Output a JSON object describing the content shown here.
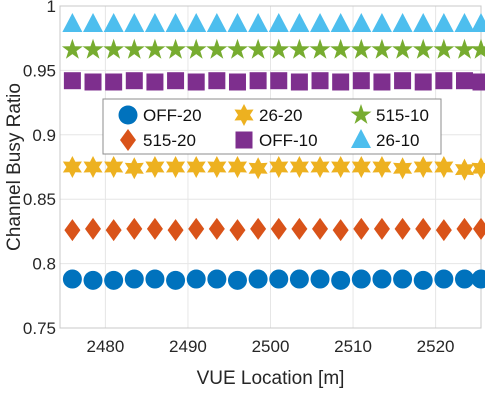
{
  "chart_data": {
    "type": "scatter",
    "xlabel": "VUE Location [m]",
    "ylabel": "Channel Busy Ratio",
    "xlim": [
      2474.5,
      2525.5
    ],
    "ylim": [
      0.75,
      1.0
    ],
    "xticks": [
      2480,
      2490,
      2500,
      2510,
      2520
    ],
    "xtick_labels": [
      "2480",
      "2490",
      "2500",
      "2510",
      "2520"
    ],
    "yticks": [
      0.75,
      0.8,
      0.85,
      0.9,
      0.95,
      1.0
    ],
    "ytick_labels": [
      "0.75",
      "0.8",
      "0.85",
      "0.9",
      "0.95",
      "1"
    ],
    "grid": true,
    "legend_position": "center",
    "x": [
      2476,
      2478.5,
      2481,
      2483.5,
      2486,
      2488.5,
      2491,
      2493.5,
      2496,
      2498.5,
      2501,
      2503.5,
      2506,
      2508.5,
      2511,
      2513.5,
      2516,
      2518.5,
      2521,
      2523.5,
      2525.5
    ],
    "series": [
      {
        "name": "OFF-20",
        "marker": "circle",
        "color": "#0072BD",
        "values": [
          0.788,
          0.787,
          0.787,
          0.788,
          0.788,
          0.787,
          0.788,
          0.788,
          0.787,
          0.788,
          0.788,
          0.788,
          0.788,
          0.787,
          0.788,
          0.788,
          0.788,
          0.787,
          0.788,
          0.788,
          0.788
        ]
      },
      {
        "name": "515-20",
        "marker": "diamond",
        "color": "#D95319",
        "values": [
          0.826,
          0.827,
          0.826,
          0.827,
          0.827,
          0.826,
          0.827,
          0.827,
          0.826,
          0.827,
          0.827,
          0.827,
          0.827,
          0.826,
          0.827,
          0.827,
          0.827,
          0.827,
          0.826,
          0.827,
          0.827
        ]
      },
      {
        "name": "26-20",
        "marker": "hexagram",
        "color": "#EDB120",
        "values": [
          0.875,
          0.875,
          0.875,
          0.874,
          0.875,
          0.875,
          0.875,
          0.875,
          0.875,
          0.874,
          0.875,
          0.875,
          0.875,
          0.875,
          0.875,
          0.875,
          0.874,
          0.875,
          0.875,
          0.873,
          0.874
        ]
      },
      {
        "name": "OFF-10",
        "marker": "square",
        "color": "#7E2F8E",
        "values": [
          0.942,
          0.941,
          0.941,
          0.942,
          0.941,
          0.942,
          0.941,
          0.942,
          0.941,
          0.942,
          0.942,
          0.941,
          0.942,
          0.941,
          0.942,
          0.941,
          0.942,
          0.941,
          0.942,
          0.942,
          0.941
        ]
      },
      {
        "name": "515-10",
        "marker": "pentagram",
        "color": "#77AC30",
        "values": [
          0.966,
          0.966,
          0.966,
          0.966,
          0.966,
          0.966,
          0.966,
          0.966,
          0.966,
          0.966,
          0.966,
          0.966,
          0.966,
          0.966,
          0.966,
          0.966,
          0.966,
          0.966,
          0.966,
          0.966,
          0.966
        ]
      },
      {
        "name": "26-10",
        "marker": "triangle",
        "color": "#4DBEEE",
        "values": [
          0.986,
          0.986,
          0.986,
          0.986,
          0.986,
          0.986,
          0.986,
          0.986,
          0.986,
          0.986,
          0.986,
          0.986,
          0.986,
          0.986,
          0.986,
          0.986,
          0.986,
          0.986,
          0.986,
          0.986,
          0.986
        ]
      }
    ],
    "legend_order": [
      "OFF-20",
      "26-20",
      "515-10",
      "515-20",
      "OFF-10",
      "26-10"
    ]
  }
}
